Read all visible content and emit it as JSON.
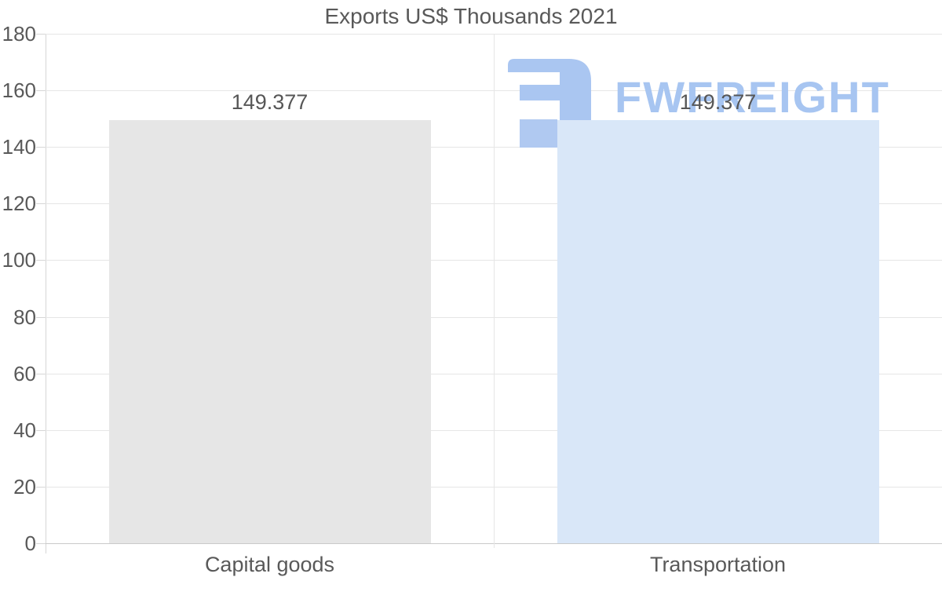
{
  "chart_data": {
    "type": "bar",
    "title": "Exports US$ Thousands 2021",
    "categories": [
      "Capital goods",
      "Transportation"
    ],
    "values": [
      149.377,
      149.377
    ],
    "value_labels": [
      "149.377",
      "149.377"
    ],
    "bar_colors": [
      "#e6e6e6",
      "#d9e7f8"
    ],
    "xlabel": "",
    "ylabel": "",
    "ylim": [
      0,
      180
    ],
    "yticks": [
      0,
      20,
      40,
      60,
      80,
      100,
      120,
      140,
      160,
      180
    ],
    "grid": "horizontal gridlines on, legend off"
  },
  "watermark": {
    "text": "FWFREIGHT",
    "icon": "fwfreight-logo-icon",
    "icon_color": "#aac6f1",
    "icon_accent_color": "#b0c9f1",
    "text_color": "#a7c5f1"
  },
  "colors": {
    "text": "#595959",
    "value_label_text": "#565656",
    "gridline": "#e6e6e6",
    "axis_line": "#c9c9c9",
    "background": "#ffffff"
  }
}
